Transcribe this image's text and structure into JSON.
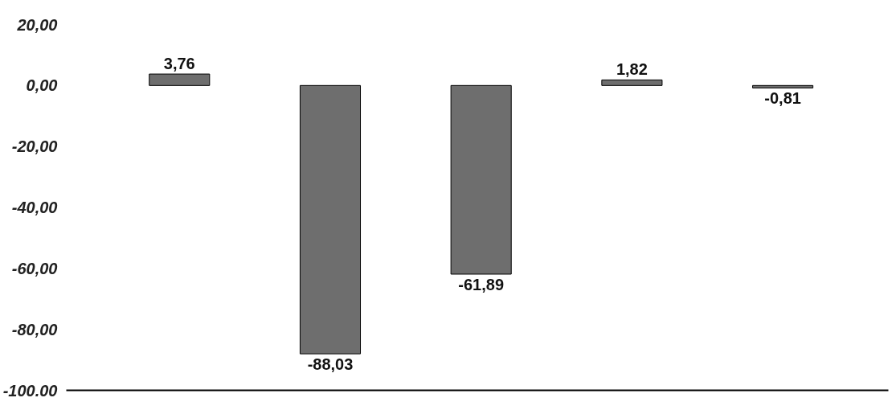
{
  "chart_data": {
    "type": "bar",
    "categories": [
      null,
      null,
      null,
      null,
      null
    ],
    "values": [
      3.76,
      -88.03,
      -61.89,
      1.82,
      -0.81
    ],
    "color": "#6e6e6e",
    "value_labels": [
      "3,76",
      "-88,03",
      "-61,89",
      "1,82",
      "-0,81"
    ],
    "ylim": [
      -100,
      20
    ],
    "yticks": [
      {
        "value": 20,
        "label": "20,00"
      },
      {
        "value": 0,
        "label": "0,00"
      },
      {
        "value": -20,
        "label": "-20,00"
      },
      {
        "value": -40,
        "label": "-40,00"
      },
      {
        "value": -60,
        "label": "-60,00"
      },
      {
        "value": -80,
        "label": "-80,00"
      },
      {
        "value": -100,
        "label": "-100.00"
      }
    ],
    "tick_labels": "y",
    "grid": false
  }
}
